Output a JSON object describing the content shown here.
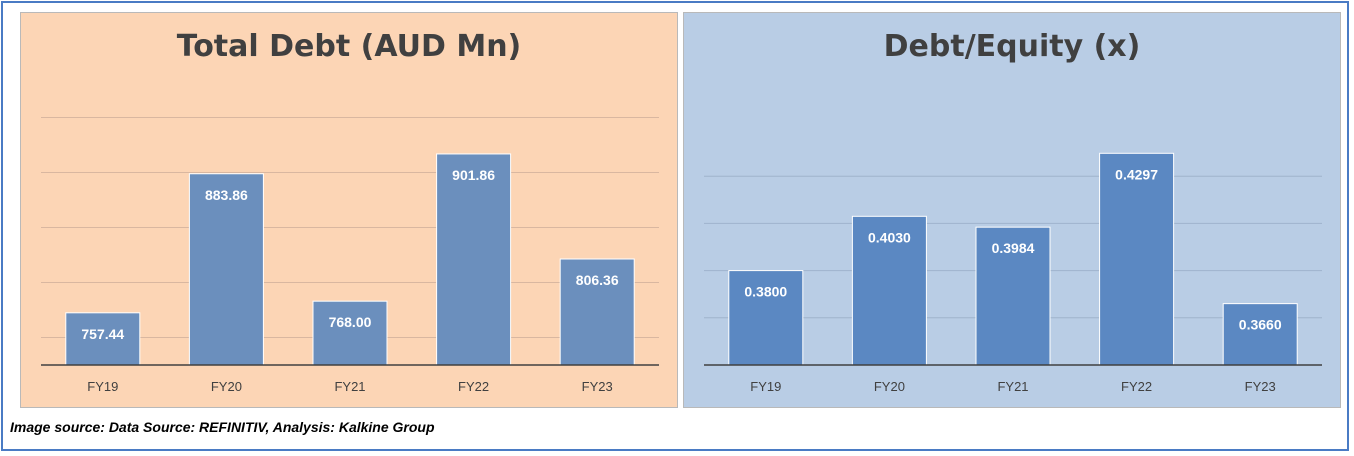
{
  "source_note": "Image source: Data Source: REFINITIV, Analysis: Kalkine Group",
  "colors": {
    "left_bg": "#fcd5b5",
    "right_bg": "#b9cde5",
    "left_bar": "#6b8fbd",
    "right_bar": "#5b88c2",
    "label": "#ffffff",
    "tick": "#404040",
    "grid_left": "#d9b7a0",
    "grid_right": "#9fb3cc"
  },
  "chart_data": [
    {
      "type": "bar",
      "title": "Total Debt (AUD Mn)",
      "xlabel": "",
      "ylabel": "",
      "categories": [
        "FY19",
        "FY20",
        "FY21",
        "FY22",
        "FY23"
      ],
      "values": [
        757.44,
        883.86,
        768.0,
        901.86,
        806.36
      ],
      "value_labels": [
        "757.44",
        "883.86",
        "768.00",
        "901.86",
        "806.36"
      ],
      "ylim": [
        710,
        960
      ],
      "grid": true,
      "legend": "none"
    },
    {
      "type": "bar",
      "title": "Debt/Equity (x)",
      "xlabel": "",
      "ylabel": "",
      "categories": [
        "FY19",
        "FY20",
        "FY21",
        "FY22",
        "FY23"
      ],
      "values": [
        0.38,
        0.403,
        0.3984,
        0.4297,
        0.366
      ],
      "value_labels": [
        "0.3800",
        "0.4030",
        "0.3984",
        "0.4297",
        "0.3660"
      ],
      "ylim": [
        0.34,
        0.44
      ],
      "grid": true,
      "legend": "none"
    }
  ]
}
